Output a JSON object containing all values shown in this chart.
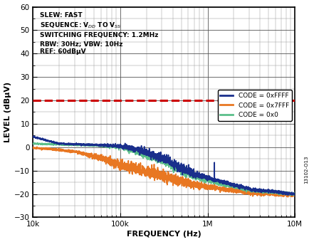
{
  "title": "",
  "xlabel": "FREQUENCY (Hz)",
  "ylabel": "LEVEL (dBµV)",
  "xlim": [
    10000,
    10000000
  ],
  "ylim": [
    -30,
    60
  ],
  "yticks": [
    -30,
    -20,
    -10,
    0,
    10,
    20,
    30,
    40,
    50,
    60
  ],
  "ref_line_y": 20,
  "ref_line_color": "#cc0000",
  "watermark": "13102-O13",
  "legend_labels": [
    "CODE = 0xFFFF",
    "CODE = 0x7FFF",
    "CODE = 0x0"
  ],
  "line_colors": [
    "#1a2f8c",
    "#e87722",
    "#5bbf8a"
  ],
  "background_color": "#ffffff",
  "spike_freq": 1200000,
  "spike_blue_height": 8,
  "spike_orange_height": 3
}
